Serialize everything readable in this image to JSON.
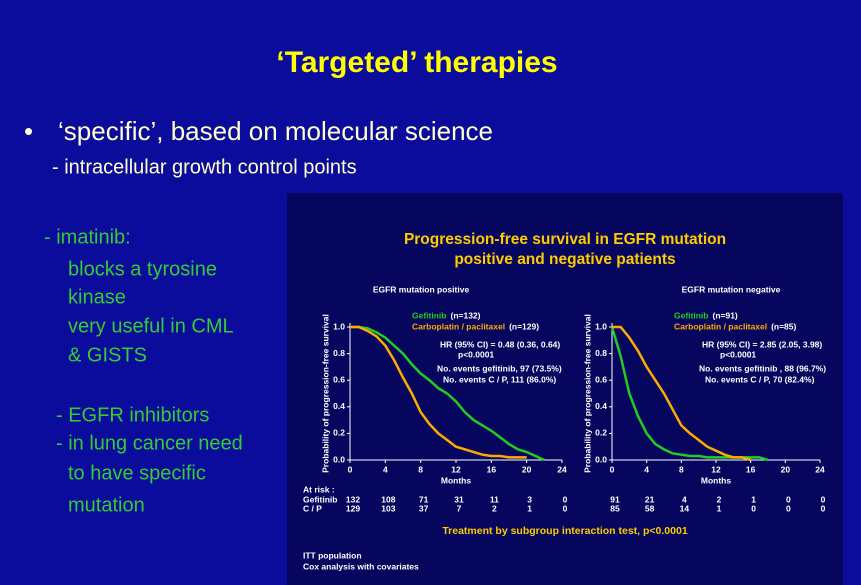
{
  "header": {
    "title": "‘Targeted’ therapies"
  },
  "bullet": {
    "main": "‘specific’, based on molecular science",
    "sub": "-  intracellular growth control points"
  },
  "left_column": [
    "-  imatinib:",
    "blocks a tyrosine",
    "kinase",
    "very useful in CML",
    "& GISTS",
    "-  EGFR inhibitors",
    "-  in lung cancer need",
    "to have specific",
    "mutation"
  ],
  "figure": {
    "title_lines": [
      "Progression-free survival in EGFR mutation",
      "positive and negative patients"
    ],
    "footer": "Treatment by subgroup interaction test, p<0.0001",
    "notes": [
      "ITT population",
      "Cox analysis with covariates"
    ]
  },
  "chart_data": [
    {
      "type": "line",
      "title": "EGFR mutation positive",
      "x_label": "Months",
      "y_label": "Probability of progression-free survival",
      "x": [
        0,
        1,
        2,
        3,
        4,
        5,
        6,
        7,
        8,
        9,
        10,
        11,
        12,
        13,
        14,
        15,
        16,
        17,
        18,
        19,
        20,
        21,
        22
      ],
      "series": [
        {
          "name": "Gefitinib",
          "n": "(n=132)",
          "color": "#22cc22",
          "values": [
            1.0,
            1.0,
            0.99,
            0.96,
            0.92,
            0.86,
            0.8,
            0.72,
            0.65,
            0.6,
            0.54,
            0.5,
            0.44,
            0.36,
            0.3,
            0.26,
            0.22,
            0.17,
            0.12,
            0.08,
            0.06,
            0.03,
            0.0
          ]
        },
        {
          "name": "Carboplatin / paclitaxel",
          "n": "(n=129)",
          "color": "#ffaa00",
          "values": [
            1.0,
            1.0,
            0.97,
            0.93,
            0.86,
            0.75,
            0.62,
            0.5,
            0.36,
            0.27,
            0.2,
            0.15,
            0.1,
            0.08,
            0.06,
            0.04,
            0.03,
            0.03,
            0.02,
            0.02,
            0.02,
            null,
            null
          ]
        }
      ],
      "annotations": [
        "HR (95% CI) = 0.48 (0.36, 0.64)",
        "p<0.0001",
        "No. events gefitinib,  97 (73.5%)",
        "No. events C / P,  111 (86.0%)"
      ],
      "xlim": [
        0,
        24
      ],
      "xticks": [
        0,
        4,
        8,
        12,
        16,
        20,
        24
      ],
      "ylim": [
        0,
        1
      ],
      "yticks": [
        {
          "value": 0,
          "label": "0.0"
        },
        0.2,
        0.4,
        0.6,
        0.8,
        {
          "value": 1,
          "label": "1.0"
        }
      ],
      "at_risk": {
        "label": "At risk :",
        "rows": [
          {
            "name": "Gefitinib",
            "values": [
              132,
              108,
              71,
              31,
              11,
              3,
              0
            ]
          },
          {
            "name": "C / P",
            "values": [
              129,
              103,
              37,
              7,
              2,
              1,
              0
            ]
          }
        ]
      }
    },
    {
      "type": "line",
      "title": "EGFR mutation negative",
      "x_label": "Months",
      "y_label": "Probability of progression-free survival",
      "x": [
        0,
        1,
        2,
        3,
        4,
        5,
        6,
        7,
        8,
        9,
        10,
        11,
        12,
        13,
        14,
        15,
        16,
        17,
        18,
        19,
        20,
        21,
        22
      ],
      "series": [
        {
          "name": "Gefitinib",
          "n": "(n=91)",
          "color": "#22cc22",
          "values": [
            1.0,
            0.78,
            0.5,
            0.33,
            0.2,
            0.12,
            0.08,
            0.05,
            0.04,
            0.03,
            0.03,
            0.02,
            0.02,
            0.02,
            0.02,
            0.02,
            0.02,
            0.02,
            0.0,
            null,
            null,
            null,
            null
          ]
        },
        {
          "name": "Carboplatin / paclitaxel",
          "n": "(n=85)",
          "color": "#ffaa00",
          "values": [
            1.0,
            1.0,
            0.92,
            0.82,
            0.7,
            0.6,
            0.5,
            0.38,
            0.26,
            0.2,
            0.15,
            0.1,
            0.07,
            0.04,
            0.02,
            0.02,
            0.0,
            null,
            null,
            null,
            null,
            null,
            null
          ]
        }
      ],
      "annotations": [
        "HR (95% CI) = 2.85 (2.05, 3.98)",
        "p<0.0001",
        "No. events gefitinib , 88 (96.7%)",
        "No. events C / P, 70 (82.4%)"
      ],
      "xlim": [
        0,
        24
      ],
      "xticks": [
        0,
        4,
        8,
        12,
        16,
        20,
        24
      ],
      "ylim": [
        0,
        1
      ],
      "yticks": [
        {
          "value": 0,
          "label": "0.0"
        },
        0.2,
        0.4,
        0.6,
        0.8,
        {
          "value": 1,
          "label": "1.0"
        }
      ],
      "at_risk": {
        "rows": [
          {
            "values": [
              91,
              21,
              4,
              2,
              1,
              0,
              0
            ]
          },
          {
            "values": [
              85,
              58,
              14,
              1,
              0,
              0,
              0
            ]
          }
        ]
      }
    }
  ]
}
